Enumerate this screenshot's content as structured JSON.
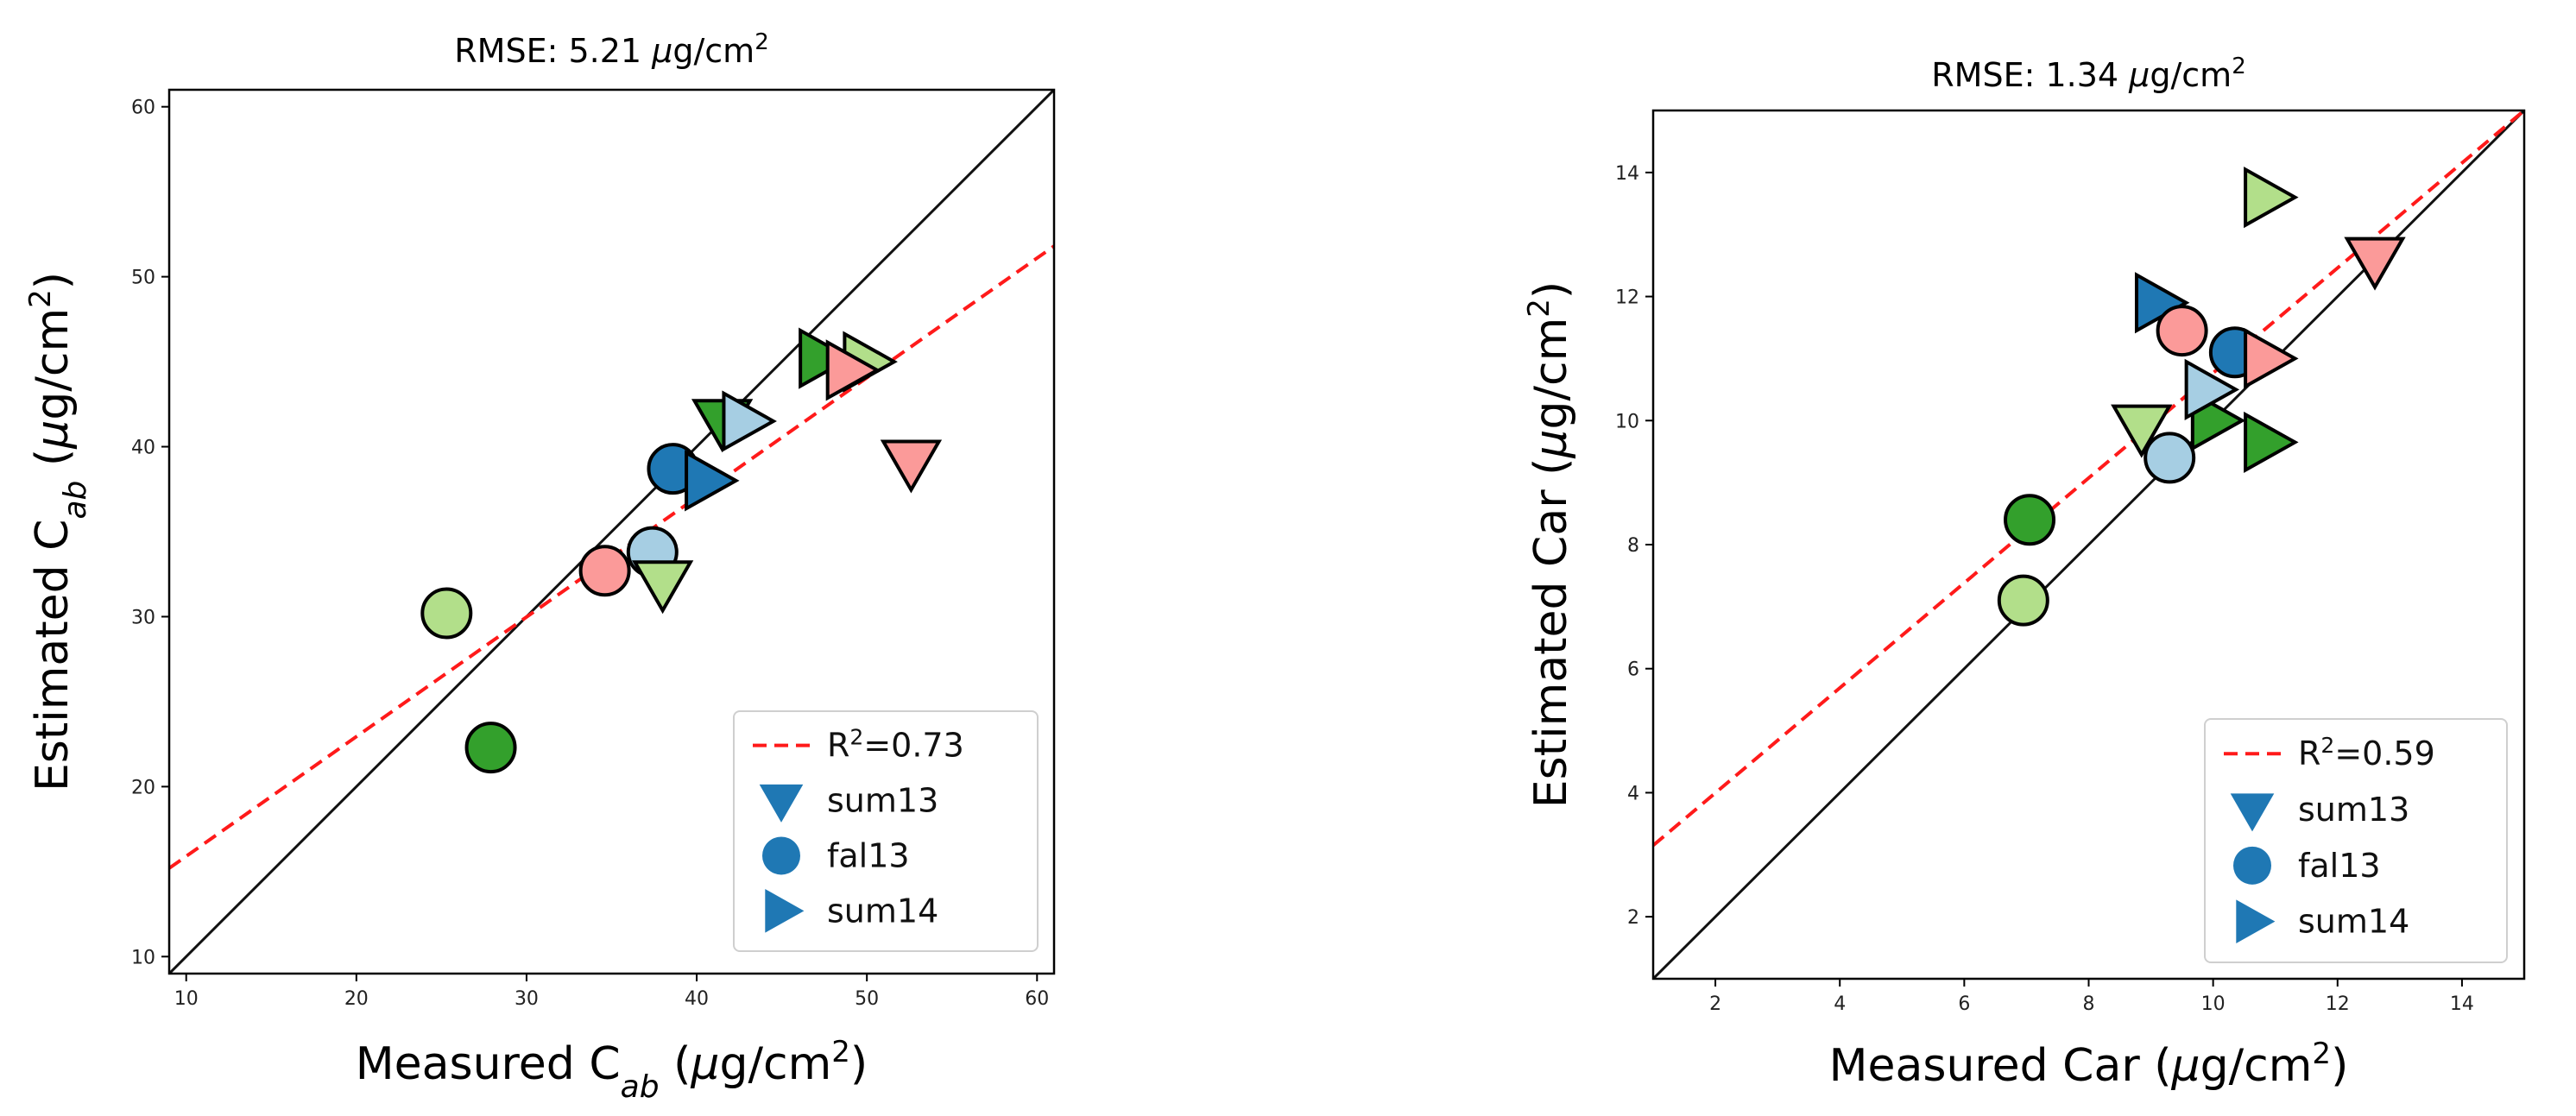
{
  "chart_data": [
    {
      "type": "scatter",
      "title_prefix": "RMSE: 5.21 ",
      "title_mu": "μ",
      "title_unit": "g/cm",
      "title_sup": "2",
      "xlabel_main": "Measured C",
      "xlabel_sub": "ab",
      "xlabel_open": " (",
      "xlabel_mu": "μ",
      "xlabel_unit": "g/cm",
      "xlabel_sup": "2",
      "xlabel_close": ")",
      "ylabel_main": "Estimated C",
      "ylabel_sub": "ab",
      "ylabel_open": " (",
      "ylabel_mu": "μ",
      "ylabel_unit": "g/cm",
      "ylabel_sup": "2",
      "ylabel_close": ")",
      "xlim": [
        9,
        61
      ],
      "ylim": [
        9,
        61
      ],
      "xticks": [
        10,
        20,
        30,
        40,
        50,
        60
      ],
      "yticks": [
        10,
        20,
        30,
        40,
        50,
        60
      ],
      "one_to_one_line": true,
      "fit_line": {
        "x": [
          9,
          61
        ],
        "y": [
          15.2,
          51.8
        ],
        "color": "#ff1a1a"
      },
      "legend": {
        "position": "lower-right",
        "entries": [
          {
            "kind": "fit",
            "text_prefix": "R",
            "text_sup": "2",
            "text_suffix": "=0.73"
          },
          {
            "kind": "marker",
            "marker": "v",
            "label": "sum13"
          },
          {
            "kind": "marker",
            "marker": "o",
            "label": "fal13"
          },
          {
            "kind": "marker",
            "marker": ">",
            "label": "sum14"
          }
        ]
      },
      "points": [
        {
          "x": 25.3,
          "y": 30.2,
          "marker": "o",
          "color": "#b2df8a"
        },
        {
          "x": 27.9,
          "y": 22.3,
          "marker": "o",
          "color": "#33a02c"
        },
        {
          "x": 34.6,
          "y": 32.7,
          "marker": "o",
          "color": "#fb9a99"
        },
        {
          "x": 37.4,
          "y": 33.8,
          "marker": "o",
          "color": "#a6cee3"
        },
        {
          "x": 38.0,
          "y": 32.0,
          "marker": "v",
          "color": "#b2df8a"
        },
        {
          "x": 38.6,
          "y": 38.7,
          "marker": "o",
          "color": "#1f78b4"
        },
        {
          "x": 40.6,
          "y": 38.0,
          "marker": ">",
          "color": "#1f78b4"
        },
        {
          "x": 41.5,
          "y": 41.5,
          "marker": "v",
          "color": "#33a02c"
        },
        {
          "x": 42.8,
          "y": 41.5,
          "marker": ">",
          "color": "#a6cee3"
        },
        {
          "x": 47.3,
          "y": 45.2,
          "marker": ">",
          "color": "#33a02c"
        },
        {
          "x": 49.9,
          "y": 45.0,
          "marker": ">",
          "color": "#b2df8a"
        },
        {
          "x": 48.9,
          "y": 44.5,
          "marker": ">",
          "color": "#fb9a99"
        },
        {
          "x": 52.6,
          "y": 39.1,
          "marker": "v",
          "color": "#fb9a99"
        }
      ]
    },
    {
      "type": "scatter",
      "title_prefix": "RMSE: 1.34 ",
      "title_mu": "μ",
      "title_unit": "g/cm",
      "title_sup": "2",
      "xlabel_main": "Measured Car (",
      "xlabel_mu": "μ",
      "xlabel_unit": "g/cm",
      "xlabel_sup": "2",
      "xlabel_close": ")",
      "ylabel_main": "Estimated Car (",
      "ylabel_mu": "μ",
      "ylabel_unit": "g/cm",
      "ylabel_sup": "2",
      "ylabel_close": ")",
      "xlim": [
        1,
        15
      ],
      "ylim": [
        1,
        15
      ],
      "xticks": [
        2,
        4,
        6,
        8,
        10,
        12,
        14
      ],
      "yticks": [
        2,
        4,
        6,
        8,
        10,
        12,
        14
      ],
      "one_to_one_line": true,
      "fit_line": {
        "x": [
          1,
          15
        ],
        "y": [
          3.15,
          15.0
        ],
        "color": "#ff1a1a"
      },
      "legend": {
        "position": "lower-right",
        "entries": [
          {
            "kind": "fit",
            "text_prefix": "R",
            "text_sup": "2",
            "text_suffix": "=0.59"
          },
          {
            "kind": "marker",
            "marker": "v",
            "label": "sum13"
          },
          {
            "kind": "marker",
            "marker": "o",
            "label": "fal13"
          },
          {
            "kind": "marker",
            "marker": ">",
            "label": "sum14"
          }
        ]
      },
      "points": [
        {
          "x": 6.95,
          "y": 7.1,
          "marker": "o",
          "color": "#b2df8a"
        },
        {
          "x": 7.05,
          "y": 8.4,
          "marker": "o",
          "color": "#33a02c"
        },
        {
          "x": 8.85,
          "y": 9.9,
          "marker": "v",
          "color": "#b2df8a"
        },
        {
          "x": 9.3,
          "y": 9.4,
          "marker": "o",
          "color": "#a6cee3"
        },
        {
          "x": 9.1,
          "y": 11.9,
          "marker": ">",
          "color": "#1f78b4"
        },
        {
          "x": 9.5,
          "y": 11.45,
          "marker": "o",
          "color": "#fb9a99"
        },
        {
          "x": 10.0,
          "y": 10.0,
          "marker": ">",
          "color": "#33a02c"
        },
        {
          "x": 9.9,
          "y": 10.5,
          "marker": ">",
          "color": "#a6cee3"
        },
        {
          "x": 10.35,
          "y": 11.1,
          "marker": "o",
          "color": "#1f78b4"
        },
        {
          "x": 10.85,
          "y": 11.0,
          "marker": ">",
          "color": "#fb9a99"
        },
        {
          "x": 10.85,
          "y": 9.65,
          "marker": ">",
          "color": "#33a02c"
        },
        {
          "x": 10.85,
          "y": 13.6,
          "marker": ">",
          "color": "#b2df8a"
        },
        {
          "x": 12.6,
          "y": 12.6,
          "marker": "v",
          "color": "#fb9a99"
        }
      ]
    }
  ]
}
